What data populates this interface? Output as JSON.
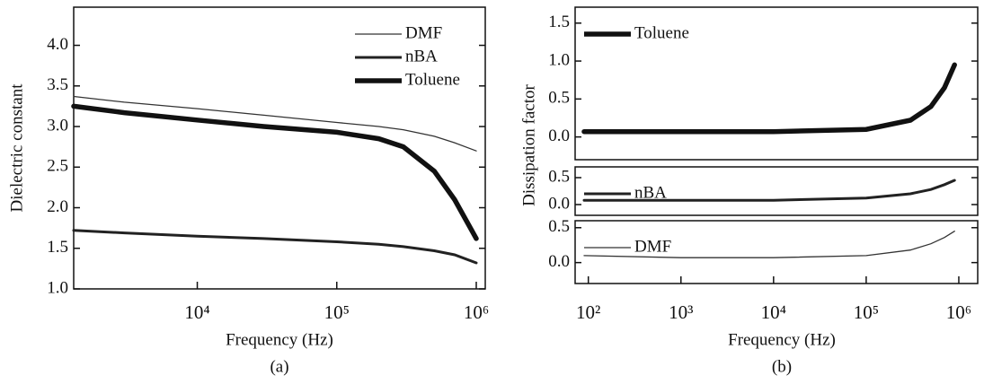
{
  "chart_data": [
    {
      "type": "line",
      "xscale": "log",
      "legend": "upper right",
      "ylabel": "Dielectric constant",
      "xlabel": "Frequency (Hz)",
      "caption": "(a)",
      "xlim": [
        1300,
        1160000
      ],
      "ylim": [
        1.0,
        4.47
      ],
      "xticks": [
        {
          "value": 10000,
          "label": "10⁴"
        },
        {
          "value": 100000,
          "label": "10⁵"
        },
        {
          "value": 1000000,
          "label": "10⁶"
        }
      ],
      "yticks": [
        {
          "value": 1,
          "label": "1.0"
        },
        1.5,
        {
          "value": 2,
          "label": "2.0"
        },
        2.5,
        {
          "value": 3,
          "label": "3.0"
        },
        3.5,
        {
          "value": 4,
          "label": "4.0"
        }
      ],
      "x": [
        1300,
        3000,
        10000,
        30000,
        100000,
        200000,
        300000,
        500000,
        700000,
        1000000
      ],
      "series": [
        {
          "name": "DMF",
          "color": "#333333",
          "line_width": 1.3,
          "values": [
            3.37,
            3.3,
            3.22,
            3.14,
            3.05,
            3.0,
            2.96,
            2.88,
            2.8,
            2.7
          ]
        },
        {
          "name": "nBA",
          "color": "#222222",
          "line_width": 3,
          "values": [
            1.72,
            1.69,
            1.65,
            1.62,
            1.58,
            1.55,
            1.52,
            1.47,
            1.42,
            1.32
          ]
        },
        {
          "name": "Toluene",
          "color": "#111111",
          "line_width": 5.5,
          "values": [
            3.25,
            3.17,
            3.08,
            3.0,
            2.93,
            2.85,
            2.75,
            2.45,
            2.1,
            1.62
          ]
        }
      ]
    },
    {
      "type": "line",
      "xscale": "log",
      "legend": "upper left",
      "ylabel": "Dissipation factor",
      "xlim": [
        72,
        1600000
      ],
      "ylim": [
        -0.3,
        1.71
      ],
      "yticks": [
        {
          "value": 0,
          "label": "0.0"
        },
        0.5,
        {
          "value": 1,
          "label": "1.0"
        },
        1.5
      ],
      "x": [
        90,
        1000,
        10000,
        100000,
        300000,
        500000,
        700000,
        900000
      ],
      "series": [
        {
          "name": "Toluene",
          "color": "#111111",
          "line_width": 5.5,
          "values": [
            0.07,
            0.07,
            0.07,
            0.1,
            0.22,
            0.4,
            0.65,
            0.95
          ]
        }
      ]
    },
    {
      "type": "line",
      "xscale": "log",
      "legend": "upper left",
      "xlim": [
        72,
        1600000
      ],
      "ylim": [
        -0.2,
        0.7
      ],
      "yticks": [
        {
          "value": 0,
          "label": "0.0"
        },
        0.5
      ],
      "x": [
        90,
        1000,
        10000,
        100000,
        300000,
        500000,
        700000,
        900000
      ],
      "series": [
        {
          "name": "nBA",
          "color": "#222222",
          "line_width": 3,
          "values": [
            0.08,
            0.08,
            0.08,
            0.12,
            0.2,
            0.28,
            0.37,
            0.45
          ]
        }
      ]
    },
    {
      "type": "line",
      "xscale": "log",
      "legend": "upper left",
      "xlabel": "Frequency (Hz)",
      "caption": "(b)",
      "xlim": [
        72,
        1600000
      ],
      "ylim": [
        -0.3,
        0.6
      ],
      "xticks": [
        {
          "value": 100,
          "label": "10²"
        },
        {
          "value": 1000,
          "label": "10³"
        },
        {
          "value": 10000,
          "label": "10⁴"
        },
        {
          "value": 100000,
          "label": "10⁵"
        },
        {
          "value": 1000000,
          "label": "10⁶"
        }
      ],
      "yticks": [
        {
          "value": 0,
          "label": "0.0"
        },
        0.5
      ],
      "x": [
        90,
        1000,
        10000,
        100000,
        300000,
        500000,
        700000,
        900000
      ],
      "series": [
        {
          "name": "DMF",
          "color": "#333333",
          "line_width": 1.3,
          "values": [
            0.1,
            0.07,
            0.07,
            0.1,
            0.18,
            0.27,
            0.36,
            0.45
          ]
        }
      ]
    }
  ]
}
